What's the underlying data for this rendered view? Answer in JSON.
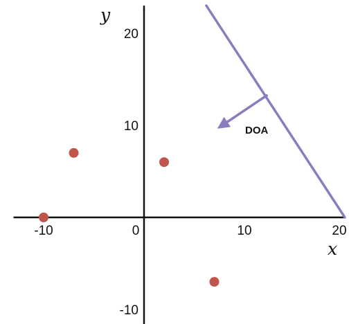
{
  "chart_data": {
    "type": "scatter",
    "xlabel": "x",
    "ylabel": "y",
    "xlim": [
      -13,
      20
    ],
    "ylim": [
      -12,
      23
    ],
    "x_ticks": [
      {
        "value": -10,
        "label": "-10"
      },
      {
        "value": 0,
        "label": "0"
      },
      {
        "value": 10,
        "label": "10"
      },
      {
        "value": 20,
        "label": "20"
      }
    ],
    "y_ticks": [
      {
        "value": 20,
        "label": "20"
      },
      {
        "value": 10,
        "label": "10"
      },
      {
        "value": -10,
        "label": "-10"
      }
    ],
    "points": [
      {
        "x": -10,
        "y": 0
      },
      {
        "x": -7,
        "y": 7
      },
      {
        "x": 2,
        "y": 6
      },
      {
        "x": 7,
        "y": -7
      }
    ],
    "wavefront_line": {
      "x1": 6.2,
      "y1": 23,
      "x2": 20,
      "y2": 0
    },
    "doa_arrow": {
      "x1": 12.3,
      "y1": 13.3,
      "x2": 7.8,
      "y2": 10.0,
      "label": "DOA"
    },
    "colors": {
      "points": "#c0554b",
      "wavefront": "#8c7bbd",
      "axes": "#111111"
    }
  }
}
